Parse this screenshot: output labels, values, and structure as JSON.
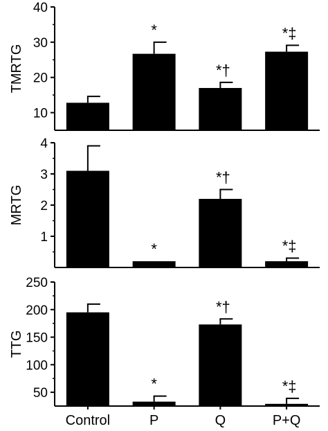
{
  "chart_data": [
    {
      "type": "bar",
      "categories": [
        "Control",
        "P",
        "Q",
        "P+Q"
      ],
      "ylabel": "TMRTG",
      "ylim": [
        5,
        40
      ],
      "yticks": [
        10,
        20,
        30,
        40
      ],
      "values": [
        12.8,
        26.7,
        17.0,
        27.3
      ],
      "errors": [
        1.8,
        3.3,
        1.6,
        1.8
      ],
      "annotations": [
        "",
        "*",
        "*†",
        "*‡"
      ]
    },
    {
      "type": "bar",
      "categories": [
        "Control",
        "P",
        "Q",
        "P+Q"
      ],
      "ylabel": "MRTG",
      "ylim": [
        0,
        4
      ],
      "yticks": [
        1,
        2,
        3,
        4
      ],
      "values": [
        3.1,
        0.2,
        2.2,
        0.2
      ],
      "errors": [
        0.8,
        0.0,
        0.3,
        0.1
      ],
      "annotations": [
        "",
        "*",
        "*†",
        "*‡"
      ]
    },
    {
      "type": "bar",
      "categories": [
        "Control",
        "P",
        "Q",
        "P+Q"
      ],
      "ylabel": "TTG",
      "ylim": [
        25,
        250
      ],
      "yticks": [
        50,
        100,
        150,
        200,
        250
      ],
      "values": [
        195,
        33,
        173,
        29
      ],
      "errors": [
        15,
        10,
        10,
        10
      ],
      "annotations": [
        "",
        "*",
        "*†",
        "*‡"
      ]
    }
  ]
}
